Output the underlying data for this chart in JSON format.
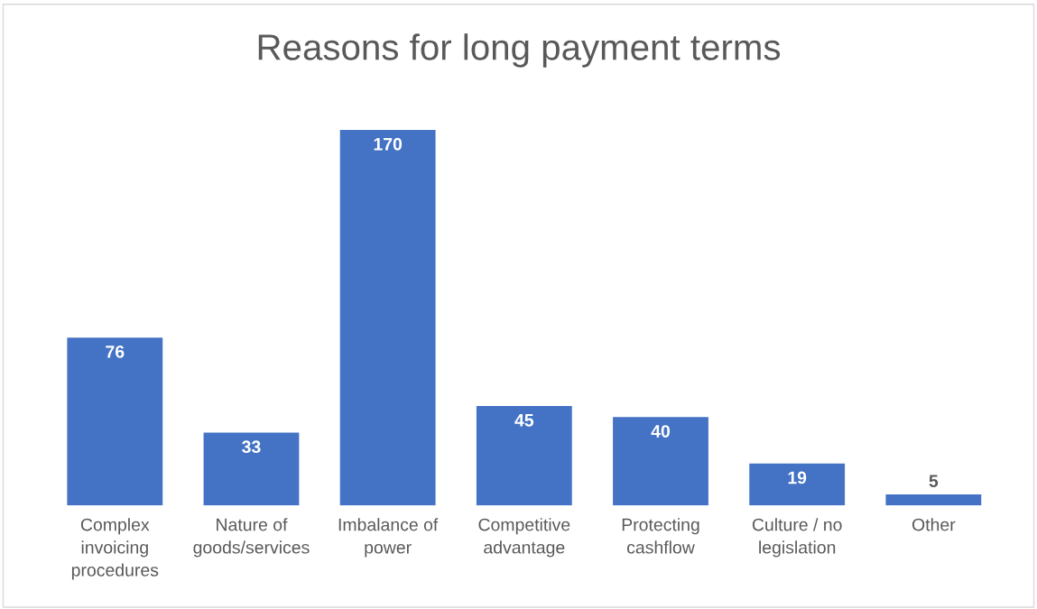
{
  "chart_data": {
    "type": "bar",
    "title": "Reasons for long payment terms",
    "categories": [
      "Complex\ninvoicing\nprocedures",
      "Nature of\ngoods/services",
      "Imbalance of\npower",
      "Competitive\nadvantage",
      "Protecting\ncashflow",
      "Culture / no\nlegislation",
      "Other"
    ],
    "values": [
      76,
      33,
      170,
      45,
      40,
      19,
      5
    ],
    "color": "#4472c4",
    "data_labels": true,
    "grid": false,
    "legend": false
  }
}
